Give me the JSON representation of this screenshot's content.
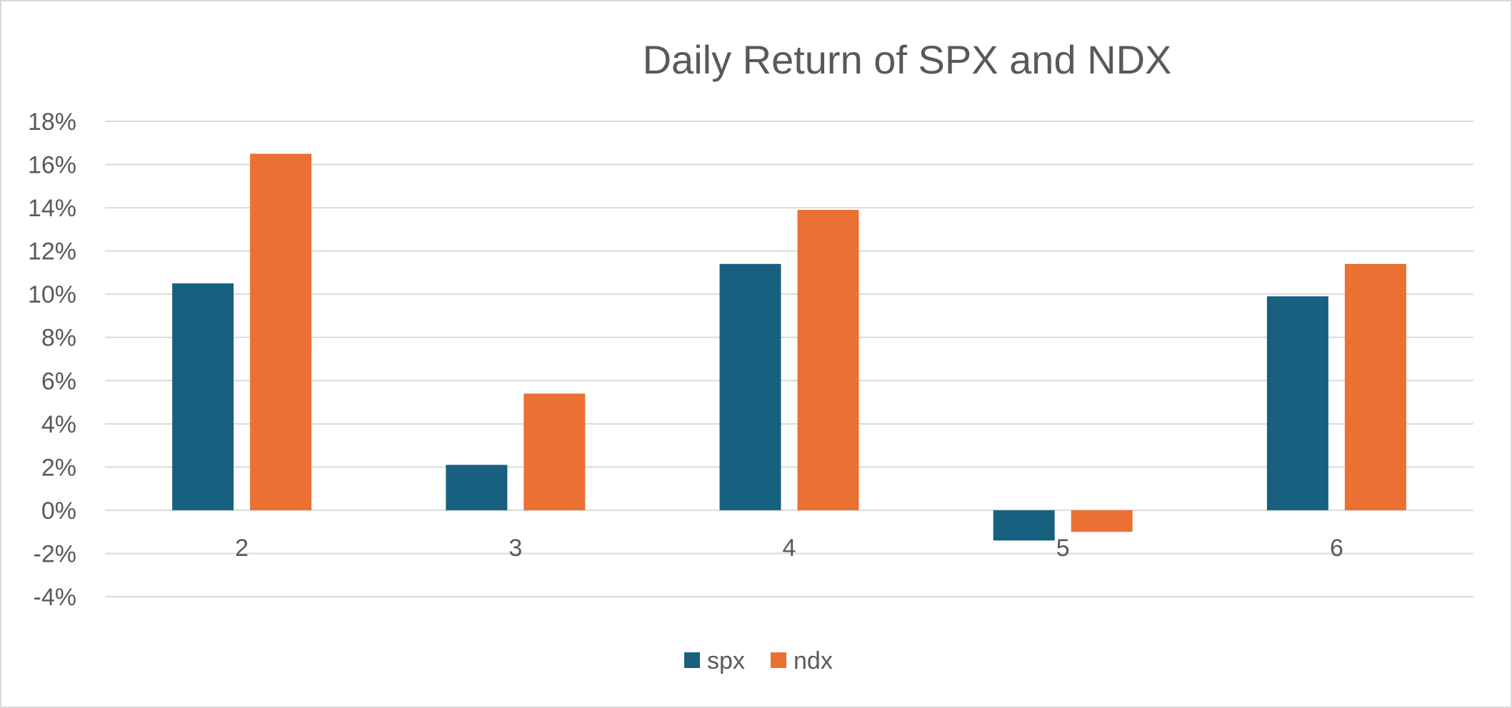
{
  "chart_data": {
    "type": "bar",
    "title": "Daily Return of SPX and NDX",
    "xlabel": "",
    "ylabel": "",
    "categories": [
      "2",
      "3",
      "4",
      "5",
      "6"
    ],
    "series": [
      {
        "name": "spx",
        "color": "#17607f",
        "values": [
          10.5,
          2.1,
          11.4,
          -1.4,
          9.9
        ]
      },
      {
        "name": "ndx",
        "color": "#ea7033",
        "values": [
          16.5,
          5.4,
          13.9,
          -1.0,
          11.4
        ]
      }
    ],
    "ylim": [
      -4,
      18
    ],
    "y_ticks": [
      18,
      16,
      14,
      12,
      10,
      8,
      6,
      4,
      2,
      0,
      -2,
      -4
    ],
    "y_tick_labels": [
      "18%",
      "16%",
      "14%",
      "12%",
      "10%",
      "8%",
      "6%",
      "4%",
      "2%",
      "0%",
      "-2%",
      "-4%"
    ],
    "grid": true,
    "legend_position": "bottom"
  }
}
